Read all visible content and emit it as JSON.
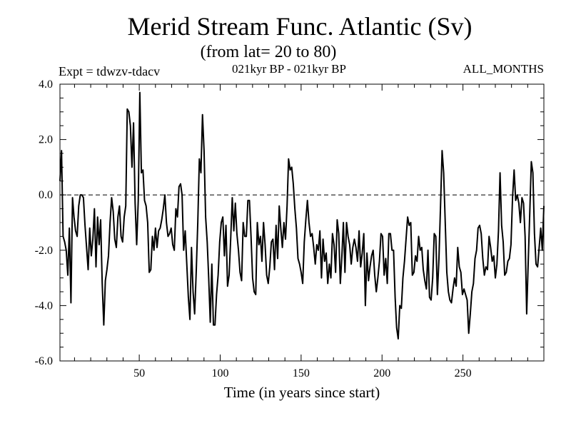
{
  "header": {
    "title": "Merid Stream Func. Atlantic (Sv)",
    "subtitle": "(from lat= 20 to 80)",
    "expt": "Expt = tdwzv-tdacv",
    "period": "021kyr BP - 021kyr BP",
    "months": "ALL_MONTHS"
  },
  "chart_data": {
    "type": "line",
    "title": "Merid Stream Func. Atlantic (Sv)",
    "subtitle": "(from lat= 20 to 80)",
    "xlabel": "Time (in years since start)",
    "ylabel": "",
    "xlim": [
      1,
      300
    ],
    "ylim": [
      -6.0,
      4.0
    ],
    "x_ticks": [
      50,
      100,
      150,
      200,
      250
    ],
    "y_ticks": [
      -6.0,
      -4.0,
      -2.0,
      0.0,
      2.0,
      4.0
    ],
    "x_tick_labels": [
      "50",
      "100",
      "150",
      "200",
      "250"
    ],
    "y_tick_labels": [
      "-6.0",
      "-4.0",
      "-2.0",
      "0.0",
      "2.0",
      "4.0"
    ],
    "reference_line": 0.0,
    "grid": false,
    "series": [
      {
        "values": [
          0.5,
          1.6,
          -1.5,
          -1.7,
          -2.0,
          -2.9,
          -1.2,
          -3.9,
          -0.1,
          -0.8,
          -1.3,
          -1.5,
          -0.4,
          0.0,
          0.0,
          -0.1,
          -1.1,
          -1.9,
          -2.7,
          -1.2,
          -2.2,
          -1.6,
          -0.5,
          -2.6,
          -0.8,
          -1.8,
          -0.9,
          -3.2,
          -4.7,
          -3.1,
          -2.7,
          -2.2,
          -1.0,
          -0.1,
          -0.6,
          -1.6,
          -1.9,
          -0.8,
          -0.4,
          -1.5,
          -1.7,
          -0.8,
          -0.4,
          3.1,
          3.0,
          2.5,
          1.0,
          2.6,
          -0.3,
          -1.8,
          -0.2,
          3.7,
          0.8,
          0.9,
          -0.2,
          -0.4,
          -1.0,
          -2.8,
          -2.7,
          -1.5,
          -2.0,
          -1.2,
          -1.9,
          -1.3,
          -1.2,
          -0.9,
          -0.5,
          0.0,
          -1.0,
          -1.5,
          -1.4,
          -1.2,
          -1.8,
          -2.0,
          -0.5,
          -0.8,
          0.3,
          0.4,
          0.0,
          -2.0,
          -1.3,
          -2.5,
          -3.7,
          -4.5,
          -1.9,
          -3.5,
          -4.3,
          -2.8,
          -1.0,
          1.3,
          0.8,
          2.9,
          1.6,
          -0.8,
          -1.7,
          -3.0,
          -4.6,
          -2.5,
          -4.7,
          -4.7,
          -3.6,
          -2.9,
          -1.7,
          -1.0,
          -0.8,
          -2.2,
          -1.1,
          -3.3,
          -2.9,
          -1.6,
          -0.1,
          -1.3,
          -0.3,
          -1.4,
          -2.0,
          -2.8,
          -3.1,
          -1.0,
          -1.5,
          -1.5,
          -0.2,
          -0.2,
          -1.5,
          -3.0,
          -3.5,
          -3.6,
          -1.0,
          -1.8,
          -1.5,
          -2.4,
          -1.0,
          -1.8,
          -2.9,
          -3.2,
          -2.6,
          -1.7,
          -1.6,
          -2.7,
          -1.1,
          -2.3,
          -0.4,
          -1.2,
          -1.9,
          -1.0,
          -1.6,
          -0.4,
          1.3,
          0.9,
          1.0,
          0.4,
          -0.5,
          -1.2,
          -2.3,
          -2.5,
          -2.8,
          -3.2,
          -1.7,
          -0.9,
          -0.2,
          -1.0,
          -1.5,
          -1.4,
          -1.9,
          -2.5,
          -1.8,
          -2.0,
          -1.3,
          -3.0,
          -1.6,
          -2.4,
          -2.1,
          -3.2,
          -2.5,
          -3.0,
          -1.4,
          -1.8,
          -2.8,
          -0.9,
          -1.4,
          -3.2,
          -2.2,
          -1.0,
          -2.8,
          -1.0,
          -1.5,
          -1.8,
          -2.5,
          -1.9,
          -1.6,
          -1.9,
          -2.4,
          -1.3,
          -2.6,
          -2.1,
          -1.4,
          -4.0,
          -2.1,
          -3.1,
          -2.6,
          -2.2,
          -2.0,
          -2.9,
          -3.5,
          -3.0,
          -2.4,
          -1.4,
          -1.5,
          -2.9,
          -2.3,
          -3.2,
          -1.4,
          -1.4,
          -2.0,
          -2.0,
          -3.7,
          -4.8,
          -5.2,
          -4.0,
          -4.1,
          -3.0,
          -2.4,
          -1.6,
          -0.8,
          -1.1,
          -1.0,
          -2.9,
          -2.8,
          -2.2,
          -2.4,
          -1.5,
          -2.0,
          -1.9,
          -2.7,
          -3.1,
          -3.4,
          -2.0,
          -3.7,
          -3.8,
          -3.0,
          -1.4,
          -1.5,
          -3.6,
          -2.3,
          -0.4,
          1.6,
          0.8,
          -1.0,
          -2.8,
          -3.5,
          -3.8,
          -3.9,
          -3.4,
          -3.0,
          -3.3,
          -1.9,
          -2.6,
          -2.8,
          -3.6,
          -3.4,
          -3.6,
          -3.8,
          -5.0,
          -4.3,
          -3.5,
          -3.2,
          -2.3,
          -2.0,
          -1.2,
          -1.1,
          -1.4,
          -2.3,
          -2.9,
          -2.6,
          -2.7,
          -1.5,
          -1.9,
          -2.4,
          -2.2,
          -3.0,
          -2.5,
          -1.3,
          0.8,
          -1.1,
          -1.7,
          -2.9,
          -2.8,
          -2.4,
          -2.3,
          -1.8,
          -0.1,
          0.9,
          -0.2,
          0.0,
          -0.3,
          -1.0,
          -0.1,
          -0.3,
          -1.5,
          -4.3,
          -2.4,
          -0.6,
          1.2,
          0.8,
          -1.4,
          -2.5,
          -2.6,
          -1.9,
          -1.2,
          -2.0,
          -0.4
        ]
      }
    ]
  }
}
